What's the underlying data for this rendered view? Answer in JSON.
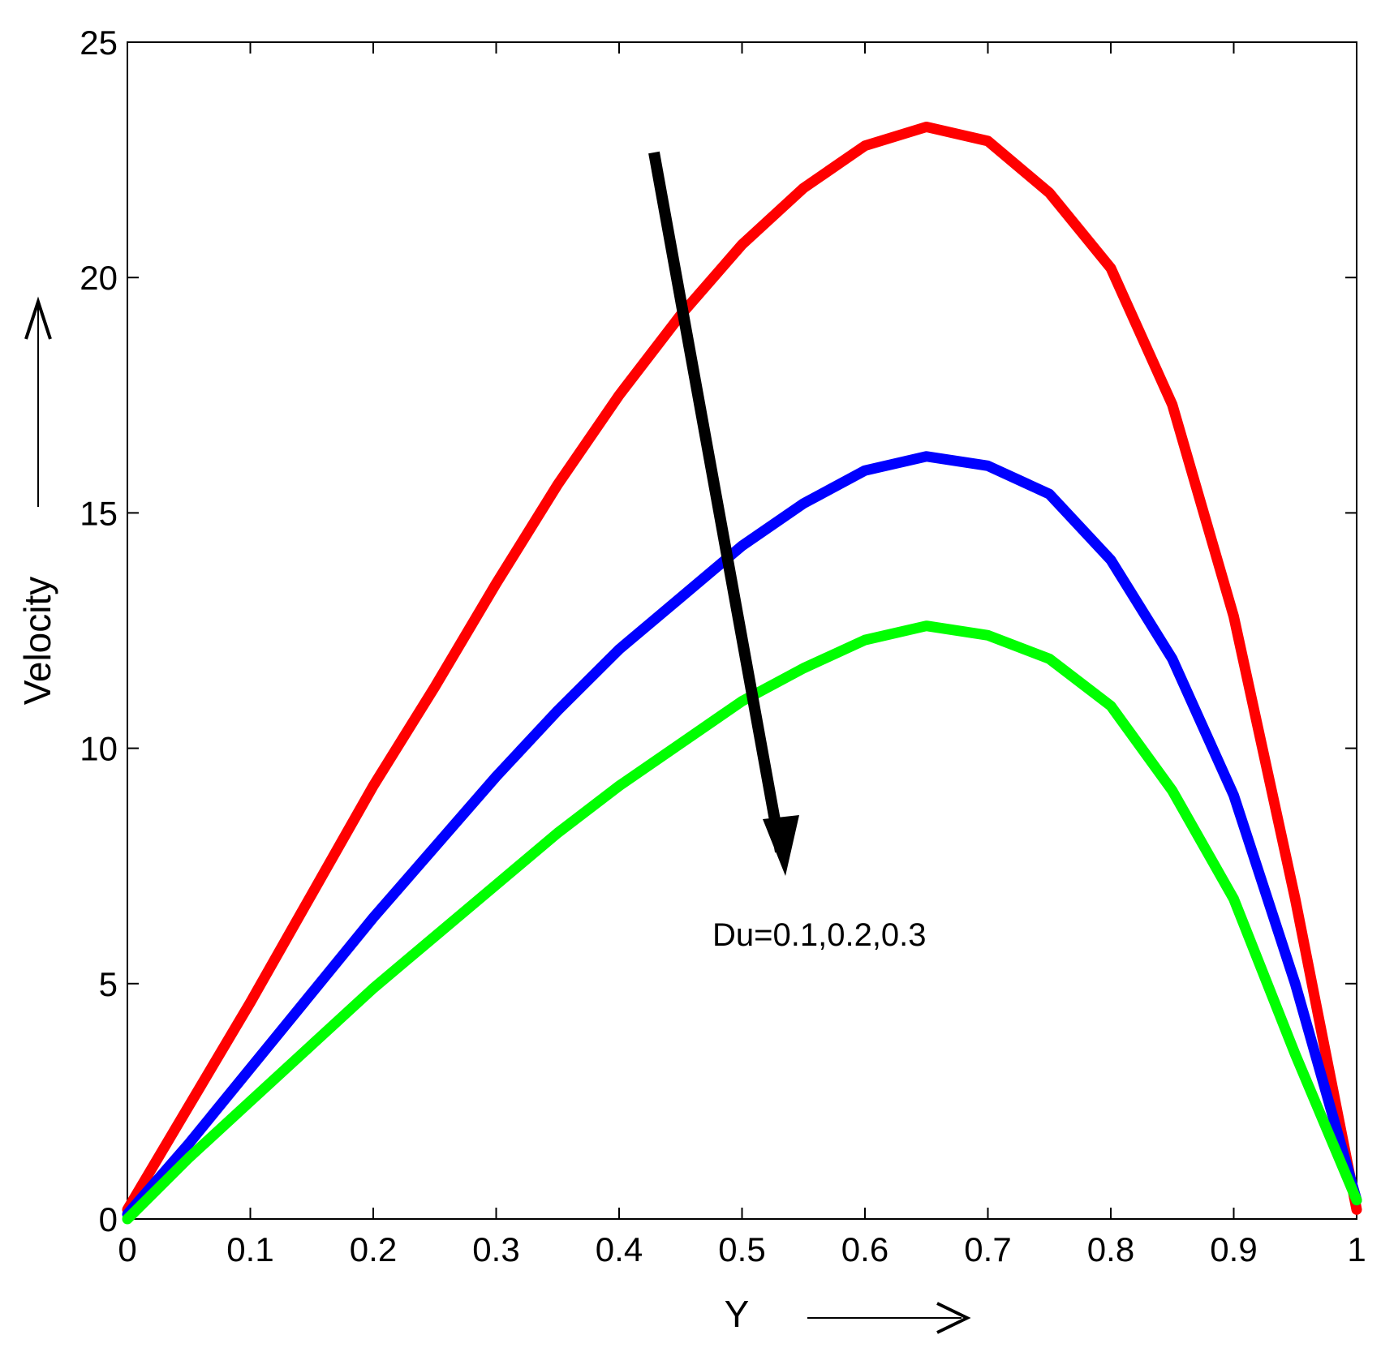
{
  "chart_data": {
    "type": "line",
    "xlabel": "Y",
    "ylabel": "Velocity",
    "xlim": [
      0,
      1
    ],
    "ylim": [
      0,
      25
    ],
    "xticks": [
      "0",
      "0.1",
      "0.2",
      "0.3",
      "0.4",
      "0.5",
      "0.6",
      "0.7",
      "0.8",
      "0.9",
      "1"
    ],
    "yticks": [
      "0",
      "5",
      "10",
      "15",
      "20",
      "25"
    ],
    "grid": false,
    "annotation": "Du=0.1,0.2,0.3",
    "x": [
      0,
      0.05,
      0.1,
      0.15,
      0.2,
      0.25,
      0.3,
      0.35,
      0.4,
      0.45,
      0.5,
      0.55,
      0.6,
      0.65,
      0.7,
      0.75,
      0.8,
      0.85,
      0.9,
      0.95,
      1.0
    ],
    "series": [
      {
        "color": "#ff0000",
        "values": [
          0.2,
          2.4,
          4.6,
          6.9,
          9.2,
          11.3,
          13.5,
          15.6,
          17.5,
          19.2,
          20.7,
          21.9,
          22.8,
          23.2,
          22.9,
          21.8,
          20.2,
          17.3,
          12.8,
          6.8,
          0.2
        ]
      },
      {
        "color": "#0000ff",
        "values": [
          0.1,
          1.6,
          3.2,
          4.8,
          6.4,
          7.9,
          9.4,
          10.8,
          12.1,
          13.2,
          14.3,
          15.2,
          15.9,
          16.2,
          16.0,
          15.4,
          14.0,
          11.9,
          9.0,
          5.0,
          0.4
        ]
      },
      {
        "color": "#00ff00",
        "values": [
          0.0,
          1.3,
          2.5,
          3.7,
          4.9,
          6.0,
          7.1,
          8.2,
          9.2,
          10.1,
          11.0,
          11.7,
          12.3,
          12.6,
          12.4,
          11.9,
          10.9,
          9.1,
          6.8,
          3.5,
          0.4
        ]
      }
    ],
    "arrow_color": "#000000"
  }
}
